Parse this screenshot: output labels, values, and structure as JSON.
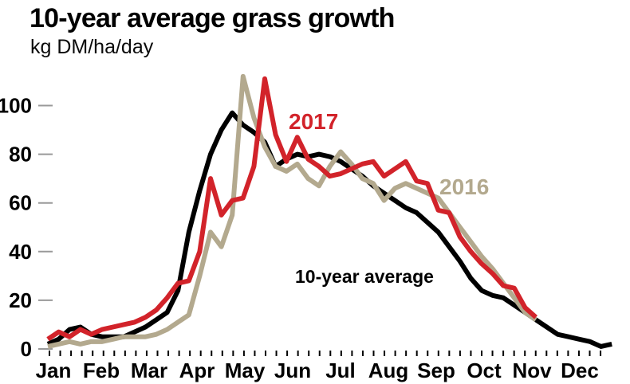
{
  "title": "10-year average grass growth",
  "subtitle": "kg DM/ha/day",
  "colors": {
    "avg_line": "#000000",
    "line_2016": "#b3a98e",
    "line_2017": "#d2232a",
    "y_tick": "#999999",
    "x_tick": "#000000",
    "axis_text": "#000000"
  },
  "chart_data": {
    "type": "line",
    "title": "10-year average grass growth",
    "ylabel": "kg DM/ha/day",
    "xlabel": "",
    "x_unit": "week of year",
    "ylim": [
      0,
      115
    ],
    "grid": "none",
    "legend_position": "inline-labels",
    "x_axis": {
      "months": [
        "Jan",
        "Feb",
        "Mar",
        "Apr",
        "May",
        "Jun",
        "Jul",
        "Aug",
        "Sep",
        "Oct",
        "Nov",
        "Dec"
      ],
      "tick_style": "weekly minor ticks"
    },
    "y_axis": {
      "ticks": [
        0,
        20,
        40,
        60,
        80,
        100
      ]
    },
    "series": [
      {
        "name": "10-year average",
        "color": "#000000",
        "start_week": 1,
        "values": [
          2,
          4,
          8,
          9,
          6,
          5,
          5,
          5,
          7,
          9,
          12,
          15,
          24,
          48,
          65,
          80,
          90,
          97,
          92,
          89,
          85,
          75,
          78,
          80,
          79,
          80,
          79,
          77,
          74,
          71,
          67,
          64,
          61,
          58,
          56,
          52,
          48,
          42,
          36,
          29,
          24,
          22,
          21,
          18,
          15,
          12,
          9,
          6,
          5,
          4,
          3,
          1,
          2
        ]
      },
      {
        "name": "2016",
        "color": "#b3a98e",
        "start_week": 1,
        "values": [
          1,
          2,
          3,
          2,
          3,
          3,
          4,
          5,
          5,
          5,
          6,
          8,
          11,
          14,
          30,
          48,
          42,
          55,
          112,
          95,
          83,
          75,
          73,
          76,
          70,
          67,
          75,
          81,
          76,
          70,
          68,
          61,
          66,
          68,
          66,
          64,
          62,
          56,
          50,
          44,
          38,
          33,
          27,
          21,
          15,
          12
        ]
      },
      {
        "name": "2017",
        "color": "#d2232a",
        "start_week": 1,
        "values": [
          4,
          7,
          5,
          8,
          6,
          8,
          9,
          10,
          11,
          13,
          16,
          21,
          27,
          28,
          40,
          70,
          55,
          61,
          62,
          75,
          111,
          88,
          77,
          87,
          78,
          75,
          71,
          72,
          74,
          76,
          77,
          71,
          74,
          77,
          69,
          68,
          57,
          56,
          46,
          40,
          35,
          31,
          26,
          25,
          17,
          13
        ]
      }
    ]
  }
}
